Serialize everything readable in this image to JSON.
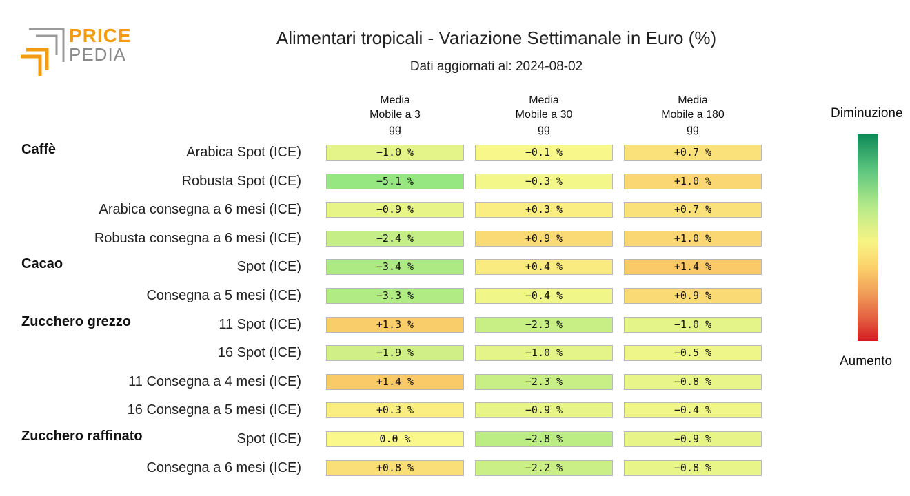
{
  "logo": {
    "line1": "PRICE",
    "line2": "PEDIA"
  },
  "chart_data": {
    "type": "table",
    "title": "Alimentari tropicali - Variazione Settimanale in Euro (%)",
    "subtitle": "Dati aggiornati al: 2024-08-02",
    "columns": [
      "Media\nMobile a 3\ngg",
      "Media\nMobile a 30\ngg",
      "Media\nMobile a 180\ngg"
    ],
    "groups": [
      {
        "name": "Caffè",
        "rows": [
          {
            "label": "Arabica Spot (ICE)",
            "values": [
              -1.0,
              -0.1,
              0.7
            ],
            "text": [
              "−1.0 %",
              "−0.1 %",
              "+0.7 %"
            ]
          },
          {
            "label": "Robusta Spot (ICE)",
            "values": [
              -5.1,
              -0.3,
              1.0
            ],
            "text": [
              "−5.1 %",
              "−0.3 %",
              "+1.0 %"
            ]
          },
          {
            "label": "Arabica consegna a 6 mesi (ICE)",
            "values": [
              -0.9,
              0.3,
              0.7
            ],
            "text": [
              "−0.9 %",
              "+0.3 %",
              "+0.7 %"
            ]
          },
          {
            "label": "Robusta consegna a 6 mesi (ICE)",
            "values": [
              -2.4,
              0.9,
              1.0
            ],
            "text": [
              "−2.4 %",
              "+0.9 %",
              "+1.0 %"
            ]
          }
        ]
      },
      {
        "name": "Cacao",
        "rows": [
          {
            "label": "Spot (ICE)",
            "values": [
              -3.4,
              0.4,
              1.4
            ],
            "text": [
              "−3.4 %",
              "+0.4 %",
              "+1.4 %"
            ]
          },
          {
            "label": "Consegna a 5 mesi (ICE)",
            "values": [
              -3.3,
              -0.4,
              0.9
            ],
            "text": [
              "−3.3 %",
              "−0.4 %",
              "+0.9 %"
            ]
          }
        ]
      },
      {
        "name": "Zucchero grezzo",
        "rows": [
          {
            "label": "11 Spot (ICE)",
            "values": [
              1.3,
              -2.3,
              -1.0
            ],
            "text": [
              "+1.3 %",
              "−2.3 %",
              "−1.0 %"
            ]
          },
          {
            "label": "16 Spot (ICE)",
            "values": [
              -1.9,
              -1.0,
              -0.5
            ],
            "text": [
              "−1.9 %",
              "−1.0 %",
              "−0.5 %"
            ]
          },
          {
            "label": "11 Consegna a 4 mesi (ICE)",
            "values": [
              1.4,
              -2.3,
              -0.8
            ],
            "text": [
              "+1.4 %",
              "−2.3 %",
              "−0.8 %"
            ]
          },
          {
            "label": "16 Consegna a 5 mesi (ICE)",
            "values": [
              0.3,
              -0.9,
              -0.4
            ],
            "text": [
              "+0.3 %",
              "−0.9 %",
              "−0.4 %"
            ]
          }
        ]
      },
      {
        "name": "Zucchero raffinato",
        "rows": [
          {
            "label": "Spot (ICE)",
            "values": [
              0.0,
              -2.8,
              -0.9
            ],
            "text": [
              "0.0 %",
              "−2.8 %",
              "−0.9 %"
            ]
          },
          {
            "label": "Consegna a 6 mesi (ICE)",
            "values": [
              0.8,
              -2.2,
              -0.8
            ],
            "text": [
              "+0.8 %",
              "−2.2 %",
              "−0.8 %"
            ]
          }
        ]
      }
    ],
    "legend": {
      "top": "Diminuzione",
      "bottom": "Aumento"
    },
    "color_scale": {
      "decrease": "#0e8a57",
      "neutral": "#f8f484",
      "increase": "#d41a1f"
    }
  }
}
